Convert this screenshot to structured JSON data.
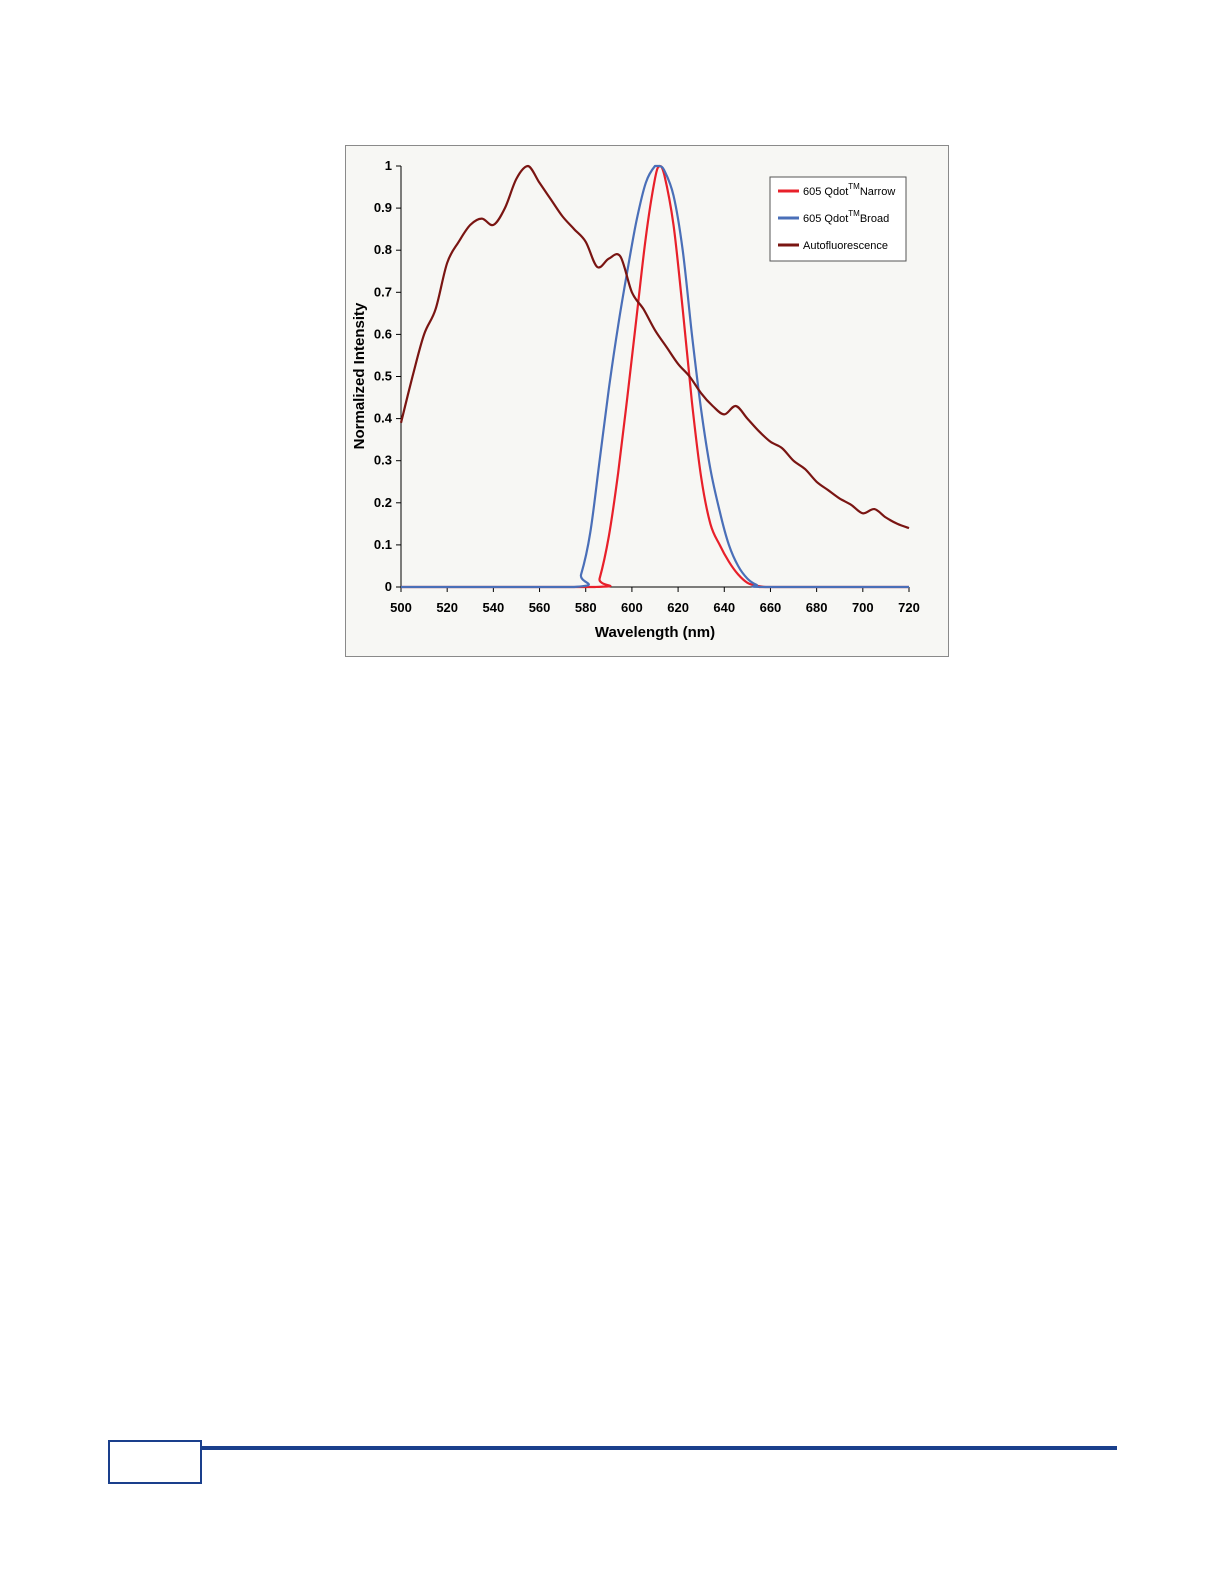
{
  "chart_data": {
    "type": "line",
    "title": "",
    "xlabel": "Wavelength (nm)",
    "ylabel": "Normalized Intensity",
    "xlim": [
      500,
      720
    ],
    "ylim": [
      0,
      1
    ],
    "xticks": [
      500,
      520,
      540,
      560,
      580,
      600,
      620,
      640,
      660,
      680,
      700,
      720
    ],
    "yticks": [
      0,
      0.1,
      0.2,
      0.3,
      0.4,
      0.5,
      0.6,
      0.7,
      0.8,
      0.9,
      1
    ],
    "xtick_labels": [
      "500",
      "520",
      "540",
      "560",
      "580",
      "600",
      "620",
      "640",
      "660",
      "680",
      "700",
      "720"
    ],
    "ytick_labels": [
      "0",
      "0.1",
      "0.2",
      "0.3",
      "0.4",
      "0.5",
      "0.6",
      "0.7",
      "0.8",
      "0.9",
      "1"
    ],
    "grid": false,
    "legend_position": "top-right",
    "series": [
      {
        "name": "605 Qdot",
        "name_sup": "TM",
        "name_suffix": "Narrow",
        "color": "#e8202a",
        "x": [
          500,
          584,
          586,
          590,
          594,
          598,
          602,
          606,
          610,
          612,
          614,
          618,
          622,
          626,
          630,
          634,
          638,
          642,
          646,
          650,
          654,
          658,
          660,
          720
        ],
        "y": [
          0,
          0,
          0.02,
          0.12,
          0.27,
          0.45,
          0.64,
          0.83,
          0.97,
          1.0,
          0.98,
          0.86,
          0.66,
          0.44,
          0.26,
          0.15,
          0.1,
          0.06,
          0.03,
          0.01,
          0.003,
          0,
          0,
          0
        ]
      },
      {
        "name": "605 Qdot",
        "name_sup": "TM",
        "name_suffix": "Broad",
        "color": "#4a6fb8",
        "x": [
          500,
          575,
          578,
          582,
          586,
          590,
          594,
          598,
          602,
          606,
          610,
          612,
          614,
          618,
          622,
          626,
          630,
          634,
          638,
          642,
          646,
          650,
          654,
          658,
          720
        ],
        "y": [
          0,
          0,
          0.03,
          0.13,
          0.3,
          0.47,
          0.62,
          0.75,
          0.87,
          0.96,
          1.0,
          1.0,
          0.99,
          0.93,
          0.8,
          0.6,
          0.42,
          0.28,
          0.18,
          0.1,
          0.05,
          0.02,
          0.005,
          0,
          0
        ]
      },
      {
        "name": "Autofluorescence",
        "color": "#7a1512",
        "x": [
          500,
          505,
          510,
          515,
          520,
          525,
          530,
          535,
          540,
          545,
          550,
          555,
          560,
          565,
          570,
          575,
          580,
          585,
          590,
          595,
          600,
          605,
          610,
          615,
          620,
          625,
          630,
          635,
          640,
          645,
          650,
          655,
          660,
          665,
          670,
          675,
          680,
          685,
          690,
          695,
          700,
          705,
          710,
          715,
          720
        ],
        "y": [
          0.39,
          0.5,
          0.6,
          0.66,
          0.77,
          0.82,
          0.86,
          0.875,
          0.86,
          0.9,
          0.97,
          1.0,
          0.96,
          0.92,
          0.88,
          0.85,
          0.82,
          0.76,
          0.78,
          0.785,
          0.7,
          0.66,
          0.61,
          0.57,
          0.53,
          0.5,
          0.46,
          0.43,
          0.41,
          0.43,
          0.4,
          0.37,
          0.345,
          0.33,
          0.3,
          0.28,
          0.25,
          0.23,
          0.21,
          0.195,
          0.175,
          0.185,
          0.165,
          0.15,
          0.14
        ]
      }
    ]
  }
}
